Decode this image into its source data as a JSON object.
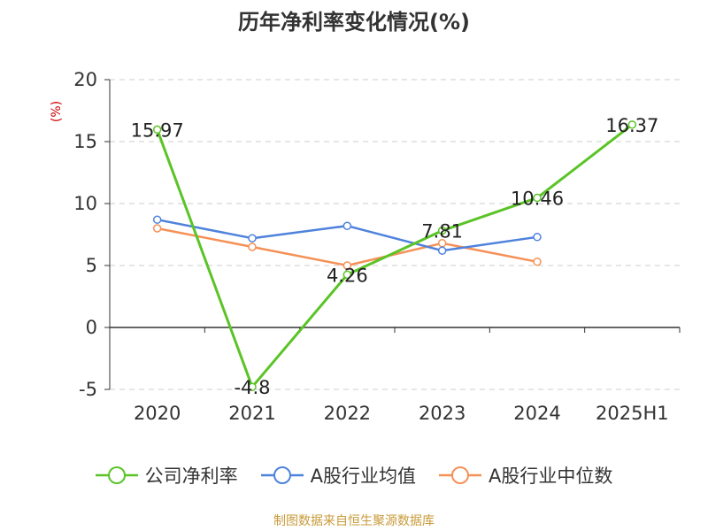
{
  "chart_data": {
    "type": "line",
    "title": "历年净利率变化情况(%)",
    "ylabel": "(%)",
    "xlabel": "",
    "categories": [
      "2020",
      "2021",
      "2022",
      "2023",
      "2024",
      "2025H1"
    ],
    "ylim": [
      -5,
      20
    ],
    "yticks": [
      -5,
      0,
      5,
      10,
      15,
      20
    ],
    "grid": true,
    "legend_position": "bottom",
    "series": [
      {
        "name": "公司净利率",
        "color": "#5ac426",
        "values": [
          15.97,
          -4.8,
          4.26,
          7.81,
          10.46,
          16.37
        ],
        "data_labels": [
          "15.97",
          "-4.8",
          "4.26",
          "7.81",
          "10.46",
          "16.37"
        ]
      },
      {
        "name": "A股行业均值",
        "color": "#4e82dc",
        "values": [
          8.7,
          7.2,
          8.2,
          6.2,
          7.3,
          null
        ]
      },
      {
        "name": "A股行业中位数",
        "color": "#f59157",
        "values": [
          8.0,
          6.5,
          5.0,
          6.8,
          5.3,
          null
        ]
      }
    ]
  },
  "source_note": "制图数据来自恒生聚源数据库"
}
